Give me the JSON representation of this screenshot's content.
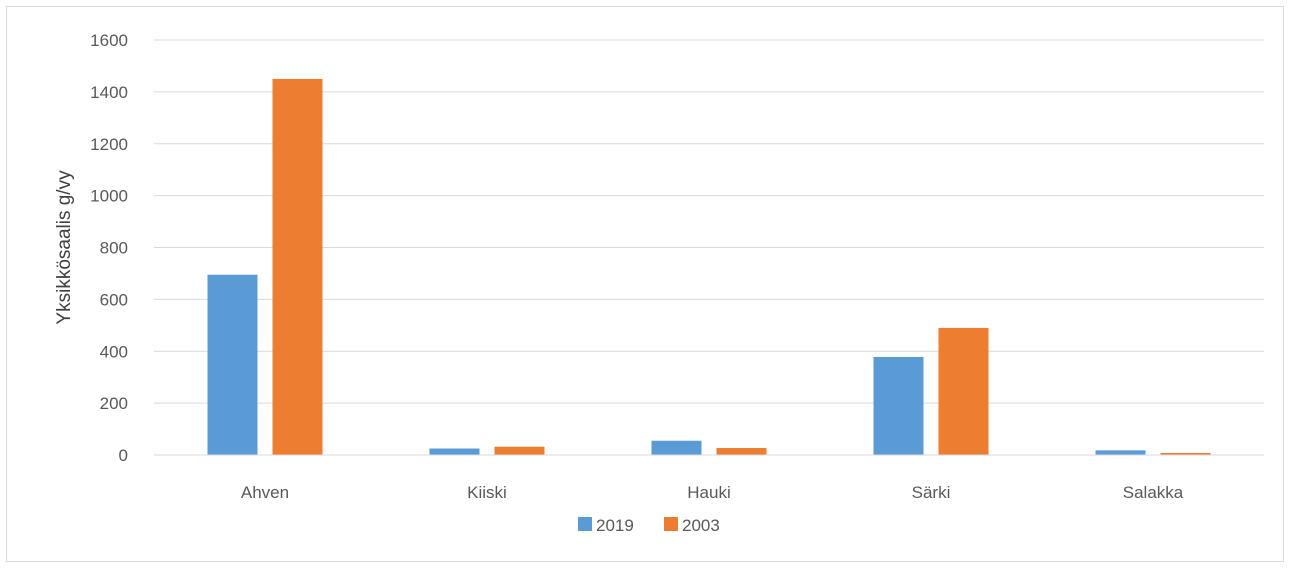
{
  "chart_data": {
    "type": "bar",
    "title": "",
    "xlabel": "",
    "ylabel": "Yksikkösaalis g/vy",
    "categories": [
      "Ahven",
      "Kiiski",
      "Hauki",
      "Särki",
      "Salakka"
    ],
    "series": [
      {
        "name": "2019",
        "color": "#5b9bd5",
        "values": [
          695,
          25,
          55,
          378,
          18
        ]
      },
      {
        "name": "2003",
        "color": "#ed7d31",
        "values": [
          1450,
          32,
          27,
          490,
          8
        ]
      }
    ],
    "ylim": [
      0,
      1600
    ],
    "yticks": [
      "0",
      "200",
      "400",
      "600",
      "800",
      "1000",
      "1200",
      "1400",
      "1600"
    ],
    "grid": true,
    "legend_position": "bottom"
  }
}
